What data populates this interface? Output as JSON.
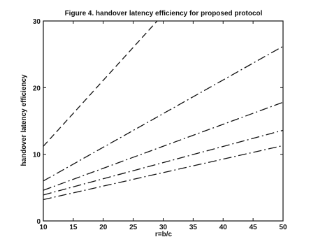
{
  "chart_data": {
    "type": "line",
    "title": "Figure 4. handover latency efficiency for proposed protocol",
    "xlabel": "r=b/c",
    "ylabel": "handover latency efficiency",
    "xlim": [
      10,
      50
    ],
    "ylim": [
      0,
      30
    ],
    "xticks": [
      10,
      15,
      20,
      25,
      30,
      35,
      40,
      45,
      50
    ],
    "yticks": [
      0,
      10,
      20,
      30
    ],
    "grid": false,
    "legend": "none",
    "colors": {
      "line": "#111111",
      "axis": "#111111",
      "background": "#ffffff"
    },
    "series": [
      {
        "x": [
          10,
          29
        ],
        "values": [
          11.2,
          30
        ],
        "style": "dashed"
      },
      {
        "x": [
          10,
          50
        ],
        "values": [
          6.0,
          26.2
        ],
        "style": "dashdot"
      },
      {
        "x": [
          10,
          50
        ],
        "values": [
          4.6,
          17.8
        ],
        "style": "dashdot"
      },
      {
        "x": [
          10,
          50
        ],
        "values": [
          3.9,
          13.6
        ],
        "style": "dashdot"
      },
      {
        "x": [
          10,
          50
        ],
        "values": [
          3.2,
          11.3
        ],
        "style": "dashdot"
      }
    ]
  }
}
